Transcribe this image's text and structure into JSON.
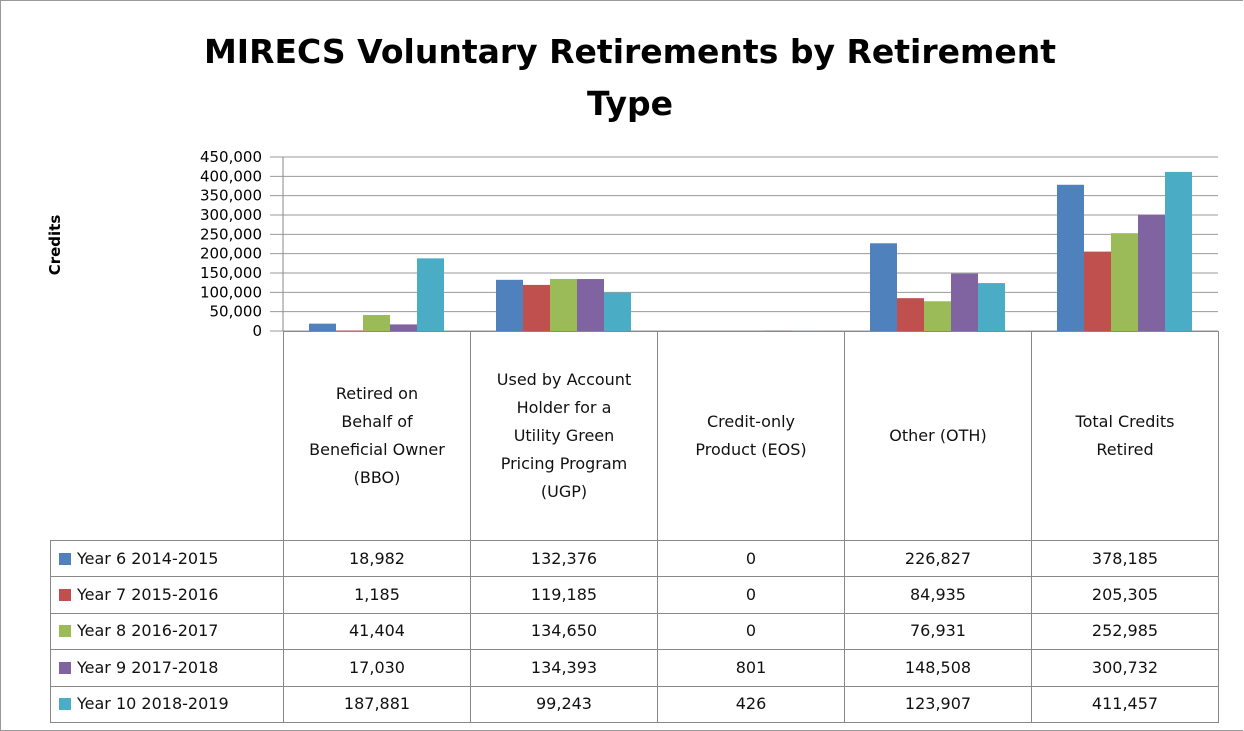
{
  "chart_data": {
    "type": "bar",
    "title": "MIRECS Voluntary Retirements by Retirement Type",
    "y_label": "Credits",
    "categories": [
      "Retired on Behalf of Beneficial Owner (BBO)",
      "Used by Account Holder for a Utility Green Pricing Program (UGP)",
      "Credit-only Product (EOS)",
      "Other (OTH)",
      "Total Credits Retired"
    ],
    "series": [
      {
        "name": "Year 6 2014-2015",
        "color": "#4f81bd",
        "values": [
          18982,
          132376,
          0,
          226827,
          378185
        ],
        "value_labels": [
          "18,982",
          "132,376",
          "0",
          "226,827",
          "378,185"
        ]
      },
      {
        "name": "Year 7 2015-2016",
        "color": "#c0504d",
        "values": [
          1185,
          119185,
          0,
          84935,
          205305
        ],
        "value_labels": [
          "1,185",
          "119,185",
          "0",
          "84,935",
          "205,305"
        ]
      },
      {
        "name": "Year 8 2016-2017",
        "color": "#9bbb59",
        "values": [
          41404,
          134650,
          0,
          76931,
          252985
        ],
        "value_labels": [
          "41,404",
          "134,650",
          "0",
          "76,931",
          "252,985"
        ]
      },
      {
        "name": "Year 9 2017-2018",
        "color": "#8064a2",
        "values": [
          17030,
          134393,
          801,
          148508,
          300732
        ],
        "value_labels": [
          "17,030",
          "134,393",
          "801",
          "148,508",
          "300,732"
        ]
      },
      {
        "name": "Year 10 2018-2019",
        "color": "#4bacc6",
        "values": [
          187881,
          99243,
          426,
          123907,
          411457
        ],
        "value_labels": [
          "187,881",
          "99,243",
          "426",
          "123,907",
          "411,457"
        ]
      }
    ],
    "ylim": [
      0,
      450000
    ],
    "yticks": [
      0,
      {
        "value": 50000,
        "label": "50,000"
      },
      {
        "value": 100000,
        "label": "100,000"
      },
      {
        "value": 150000,
        "label": "150,000"
      },
      {
        "value": 200000,
        "label": "200,000"
      },
      {
        "value": 250000,
        "label": "250,000"
      },
      {
        "value": 300000,
        "label": "300,000"
      },
      {
        "value": 350000,
        "label": "350,000"
      },
      {
        "value": 400000,
        "label": "400,000"
      },
      {
        "value": 450000,
        "label": "450,000"
      }
    ],
    "grid": true
  }
}
